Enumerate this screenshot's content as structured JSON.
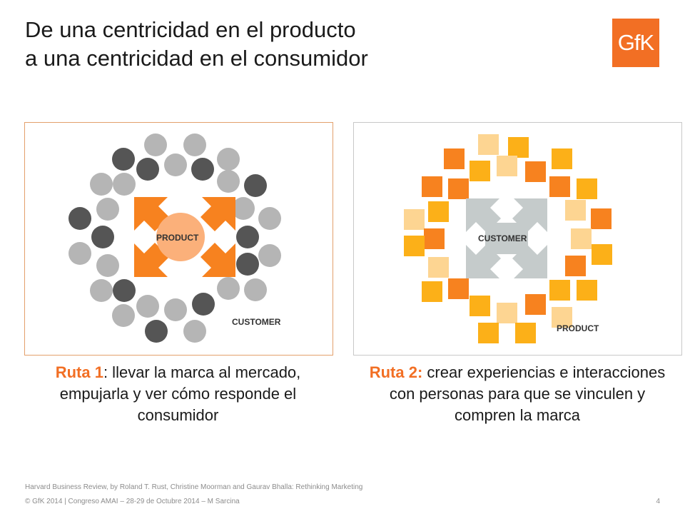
{
  "slide": {
    "title_line1": "De una centricidad en el producto",
    "title_line2": "a una centricidad en el consumidor",
    "logo_text": "GfK",
    "colors": {
      "brand_orange": "#f26f24",
      "dark_circle": "#555555",
      "light_circle": "#b5b5b5",
      "arrow_orange": "#f7821f",
      "center_circle": "#fbb07a",
      "arrow_gray": "#c5cbcb",
      "square_orange": "#f7821f",
      "square_amber": "#fcb018",
      "square_pale": "#fdd592"
    }
  },
  "diagram_left": {
    "center_label": "PRODUCT",
    "corner_label": "CUSTOMER"
  },
  "diagram_right": {
    "center_label": "CUSTOMER",
    "corner_label": "PRODUCT"
  },
  "captions": {
    "left": {
      "highlight": "Ruta 1",
      "text": ": llevar la marca al mercado, empujarla y ver cómo responde el consumidor"
    },
    "right": {
      "highlight": "Ruta 2:",
      "text": " crear experiencias e interacciones con personas para que se vinculen y compren la marca"
    }
  },
  "footer": {
    "citation": "Harvard Business Review, by Roland T. Rust, Christine Moorman and Gaurav Bhalla: Rethinking Marketing",
    "copyright": "© GfK 2014 | Congreso AMAI – 28-29 de Octubre 2014 – M Sarcina",
    "page_number": "4"
  }
}
